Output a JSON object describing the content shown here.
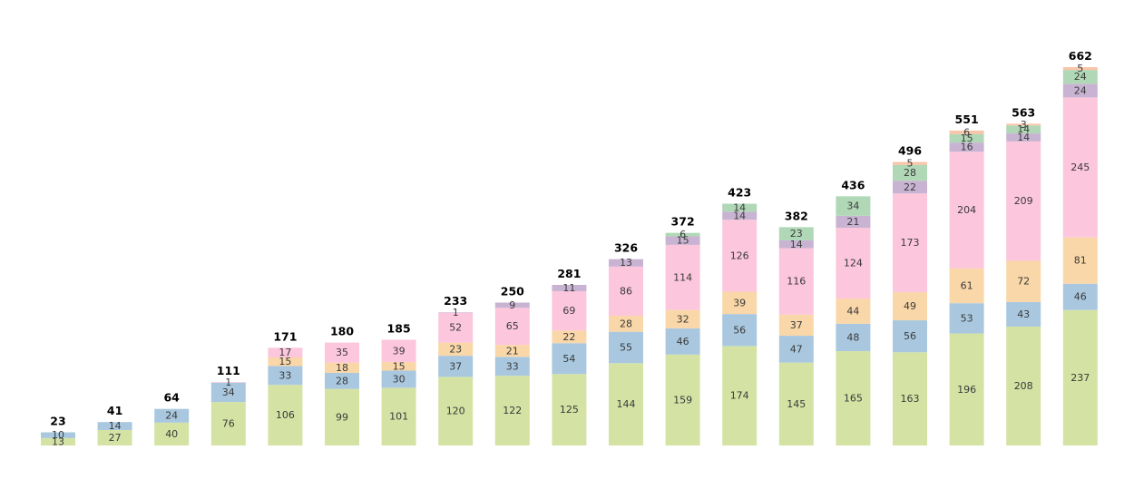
{
  "chart_data": {
    "type": "bar",
    "stacked": true,
    "title": "",
    "xlabel": "",
    "ylabel": "",
    "ylim": [
      0,
      662
    ],
    "grid": false,
    "legend": "none",
    "categories": [
      "",
      "",
      "",
      "",
      "",
      "",
      "",
      "",
      "",
      "",
      "",
      "",
      "",
      "",
      "",
      "",
      "",
      "",
      ""
    ],
    "totals": [
      23,
      41,
      64,
      111,
      171,
      180,
      185,
      233,
      250,
      281,
      326,
      372,
      423,
      382,
      436,
      496,
      551,
      563,
      662
    ],
    "series": [
      {
        "color": "#d4e3a4",
        "values": [
          13,
          27,
          40,
          76,
          106,
          99,
          101,
          120,
          122,
          125,
          144,
          159,
          174,
          145,
          165,
          163,
          196,
          208,
          237
        ]
      },
      {
        "color": "#a9c8df",
        "values": [
          10,
          14,
          24,
          34,
          33,
          28,
          30,
          37,
          33,
          54,
          55,
          46,
          56,
          47,
          48,
          56,
          53,
          43,
          46
        ]
      },
      {
        "color": "#fad7a8",
        "values": [
          0,
          0,
          0,
          0,
          15,
          18,
          15,
          23,
          21,
          22,
          28,
          32,
          39,
          37,
          44,
          49,
          61,
          72,
          81
        ]
      },
      {
        "color": "#fcc6dc",
        "values": [
          0,
          0,
          0,
          1,
          17,
          35,
          39,
          52,
          65,
          69,
          86,
          114,
          126,
          116,
          124,
          173,
          204,
          209,
          245
        ]
      },
      {
        "color": "#c9b3d3",
        "values": [
          0,
          0,
          0,
          0,
          0,
          0,
          0,
          1,
          9,
          11,
          13,
          15,
          14,
          14,
          21,
          22,
          16,
          14,
          24
        ]
      },
      {
        "color": "#b0d8b6",
        "values": [
          0,
          0,
          0,
          0,
          0,
          0,
          0,
          0,
          0,
          0,
          0,
          6,
          14,
          23,
          34,
          28,
          15,
          14,
          24
        ]
      },
      {
        "color": "#f9c4a8",
        "values": [
          0,
          0,
          0,
          0,
          0,
          0,
          0,
          0,
          0,
          0,
          0,
          0,
          0,
          0,
          0,
          5,
          6,
          3,
          5
        ]
      }
    ]
  }
}
